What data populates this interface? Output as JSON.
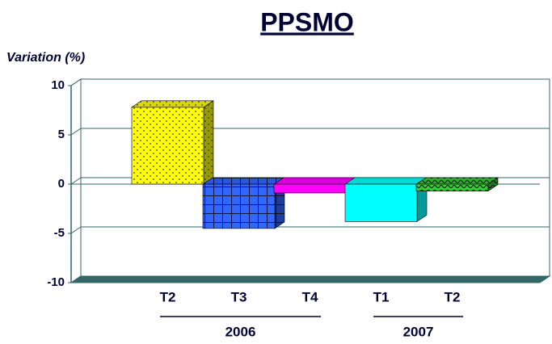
{
  "chart_data": {
    "type": "bar3d",
    "title": "PPSMO",
    "y_label": "Variation (%)",
    "categories": [
      "T2",
      "T3",
      "T4",
      "T1",
      "T2"
    ],
    "groups": [
      {
        "label": "2006",
        "count": 3
      },
      {
        "label": "2007",
        "count": 2
      }
    ],
    "values": [
      7.8,
      -4.5,
      -0.9,
      -3.8,
      -0.7
    ],
    "colors": [
      "#ffff00",
      "#3366ff",
      "#ff00ff",
      "#00ffff",
      "#33cc33"
    ],
    "patterns": [
      "dots",
      "grid",
      null,
      null,
      "wave"
    ],
    "ylim": [
      -10,
      10
    ],
    "yticks": [
      -10,
      -5,
      0,
      5,
      10
    ],
    "grid": true
  }
}
